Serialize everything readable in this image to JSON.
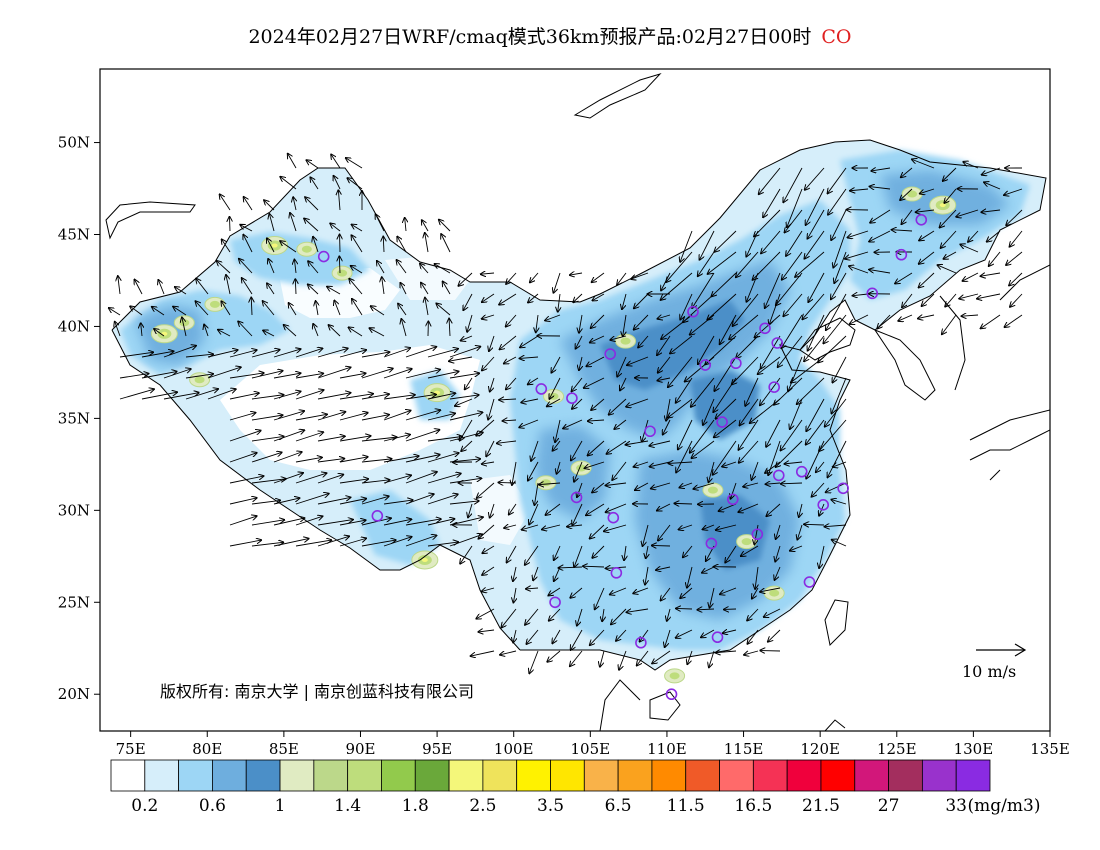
{
  "title": {
    "text": "2024年02月27日WRF/cmaq模式36km预报产品:02月27日00时",
    "species": "CO"
  },
  "copyright": "版权所有: 南京大学 | 南京创蓝科技有限公司",
  "scale_arrow": {
    "label": "10 m/s"
  },
  "colors": {
    "species_label": "#e02020",
    "city_marker": "#8a2be2",
    "coast": "#000000"
  },
  "chart_data": {
    "type": "heatmap",
    "title": "2024年02月27日WRF/cmaq模式36km预报产品:02月27日00时 CO",
    "xlabel": "",
    "ylabel": "",
    "x_ticks": [
      "75E",
      "80E",
      "85E",
      "90E",
      "95E",
      "100E",
      "105E",
      "110E",
      "115E",
      "120E",
      "125E",
      "130E",
      "135E"
    ],
    "y_ticks": [
      "20N",
      "25N",
      "30N",
      "35N",
      "40N",
      "45N",
      "50N"
    ],
    "xlim": [
      73,
      135
    ],
    "ylim": [
      18,
      54
    ],
    "unit": "(mg/m3)",
    "colorbar": {
      "colors": [
        "#ffffff",
        "#d6eefa",
        "#9dd6f5",
        "#6eaede",
        "#4b8fc8",
        "#e0ebc2",
        "#bcd88a",
        "#bedd7c",
        "#92ca4c",
        "#6aa83a",
        "#f4f77a",
        "#efe35b",
        "#fff200",
        "#ffe600",
        "#f9b249",
        "#faa21e",
        "#ff8a00",
        "#f05a28",
        "#ff6a6a",
        "#f53255",
        "#f0003c",
        "#ff0000",
        "#d2177a",
        "#a32e5e",
        "#9932cc",
        "#8a2be2"
      ],
      "labels": [
        {
          "after_index": 0,
          "text": "0.2"
        },
        {
          "after_index": 2,
          "text": "0.6"
        },
        {
          "after_index": 4,
          "text": "1"
        },
        {
          "after_index": 6,
          "text": "1.4"
        },
        {
          "after_index": 8,
          "text": "1.8"
        },
        {
          "after_index": 10,
          "text": "2.5"
        },
        {
          "after_index": 12,
          "text": "3.5"
        },
        {
          "after_index": 14,
          "text": "6.5"
        },
        {
          "after_index": 16,
          "text": "11.5"
        },
        {
          "after_index": 18,
          "text": "16.5"
        },
        {
          "after_index": 20,
          "text": "21.5"
        },
        {
          "after_index": 22,
          "text": "27"
        },
        {
          "after_index": 24,
          "text": "33"
        }
      ]
    },
    "high_spots": [
      {
        "lon": 77.2,
        "lat": 39.6,
        "level": "1.4-1.8"
      },
      {
        "lon": 78.5,
        "lat": 40.2,
        "level": "1.4"
      },
      {
        "lon": 79.5,
        "lat": 37.1,
        "level": "1.4"
      },
      {
        "lon": 80.5,
        "lat": 41.2,
        "level": "1.4"
      },
      {
        "lon": 84.4,
        "lat": 44.4,
        "level": "1.8-2.5"
      },
      {
        "lon": 86.5,
        "lat": 44.2,
        "level": "1.4"
      },
      {
        "lon": 88.8,
        "lat": 42.9,
        "level": "1.4"
      },
      {
        "lon": 95.0,
        "lat": 36.4,
        "level": "1.8-2.5"
      },
      {
        "lon": 102.6,
        "lat": 36.2,
        "level": "1.4"
      },
      {
        "lon": 104.4,
        "lat": 32.3,
        "level": "1.4"
      },
      {
        "lon": 102.1,
        "lat": 31.5,
        "level": "1.4"
      },
      {
        "lon": 107.3,
        "lat": 39.2,
        "level": "1.4"
      },
      {
        "lon": 94.2,
        "lat": 27.3,
        "level": "1.4-1.8"
      },
      {
        "lon": 110.5,
        "lat": 21.0,
        "level": "1.4"
      },
      {
        "lon": 113.0,
        "lat": 31.1,
        "level": "1.4"
      },
      {
        "lon": 115.2,
        "lat": 28.3,
        "level": "1.4"
      },
      {
        "lon": 117.0,
        "lat": 25.5,
        "level": "1.4"
      },
      {
        "lon": 128.0,
        "lat": 46.6,
        "level": "1.8-2.5"
      },
      {
        "lon": 126.0,
        "lat": 47.2,
        "level": "1.4"
      }
    ],
    "cities": [
      {
        "lon": 87.6,
        "lat": 43.8
      },
      {
        "lon": 91.1,
        "lat": 29.7
      },
      {
        "lon": 101.8,
        "lat": 36.6
      },
      {
        "lon": 103.8,
        "lat": 36.1
      },
      {
        "lon": 106.3,
        "lat": 38.5
      },
      {
        "lon": 111.7,
        "lat": 40.8
      },
      {
        "lon": 112.5,
        "lat": 37.9
      },
      {
        "lon": 114.5,
        "lat": 38.0
      },
      {
        "lon": 116.4,
        "lat": 39.9
      },
      {
        "lon": 117.2,
        "lat": 39.1
      },
      {
        "lon": 117.0,
        "lat": 36.7
      },
      {
        "lon": 113.6,
        "lat": 34.8
      },
      {
        "lon": 108.9,
        "lat": 34.3
      },
      {
        "lon": 104.1,
        "lat": 30.7
      },
      {
        "lon": 106.5,
        "lat": 29.6
      },
      {
        "lon": 106.7,
        "lat": 26.6
      },
      {
        "lon": 102.7,
        "lat": 25.0
      },
      {
        "lon": 108.3,
        "lat": 22.8
      },
      {
        "lon": 110.3,
        "lat": 20.0
      },
      {
        "lon": 113.3,
        "lat": 23.1
      },
      {
        "lon": 112.9,
        "lat": 28.2
      },
      {
        "lon": 114.3,
        "lat": 30.6
      },
      {
        "lon": 115.9,
        "lat": 28.7
      },
      {
        "lon": 117.3,
        "lat": 31.9
      },
      {
        "lon": 118.8,
        "lat": 32.1
      },
      {
        "lon": 120.2,
        "lat": 30.3
      },
      {
        "lon": 121.5,
        "lat": 31.2
      },
      {
        "lon": 119.3,
        "lat": 26.1
      },
      {
        "lon": 123.4,
        "lat": 41.8
      },
      {
        "lon": 125.3,
        "lat": 43.9
      },
      {
        "lon": 126.6,
        "lat": 45.8
      }
    ],
    "wind_vectors_description": "westerly flow over Tibet and Xinjiang, northerly flow over north China, 10 m/s reference arrow"
  }
}
